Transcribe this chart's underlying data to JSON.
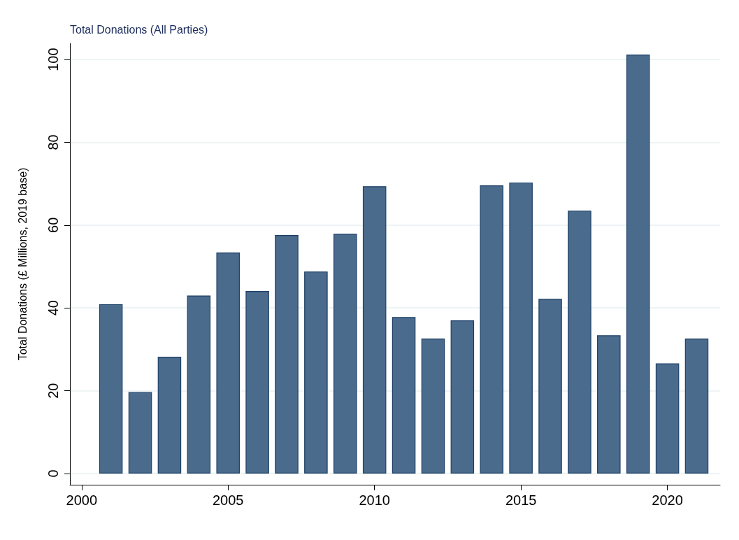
{
  "chart_data": {
    "type": "bar",
    "title": "Total Donations (All Parties)",
    "ylabel": "Total Donations (£ Millions, 2019 base)",
    "x": [
      2001,
      2002,
      2003,
      2004,
      2005,
      2006,
      2007,
      2008,
      2009,
      2010,
      2011,
      2012,
      2013,
      2014,
      2015,
      2016,
      2017,
      2018,
      2019,
      2020,
      2021
    ],
    "values": [
      40.9,
      19.7,
      28.2,
      43.0,
      53.4,
      44.1,
      57.6,
      48.8,
      57.9,
      69.4,
      37.8,
      32.6,
      37.0,
      69.6,
      70.3,
      42.2,
      63.5,
      33.4,
      101.2,
      26.6,
      32.6
    ],
    "color": "#4a6b8c",
    "xlim": [
      1999.6,
      2021.8
    ],
    "xticks": [
      2000,
      2005,
      2010,
      2015,
      2020
    ],
    "ylim": [
      -2.7,
      103.9
    ],
    "yticks": [
      0,
      20,
      40,
      60,
      80,
      100
    ],
    "grid": "y"
  }
}
